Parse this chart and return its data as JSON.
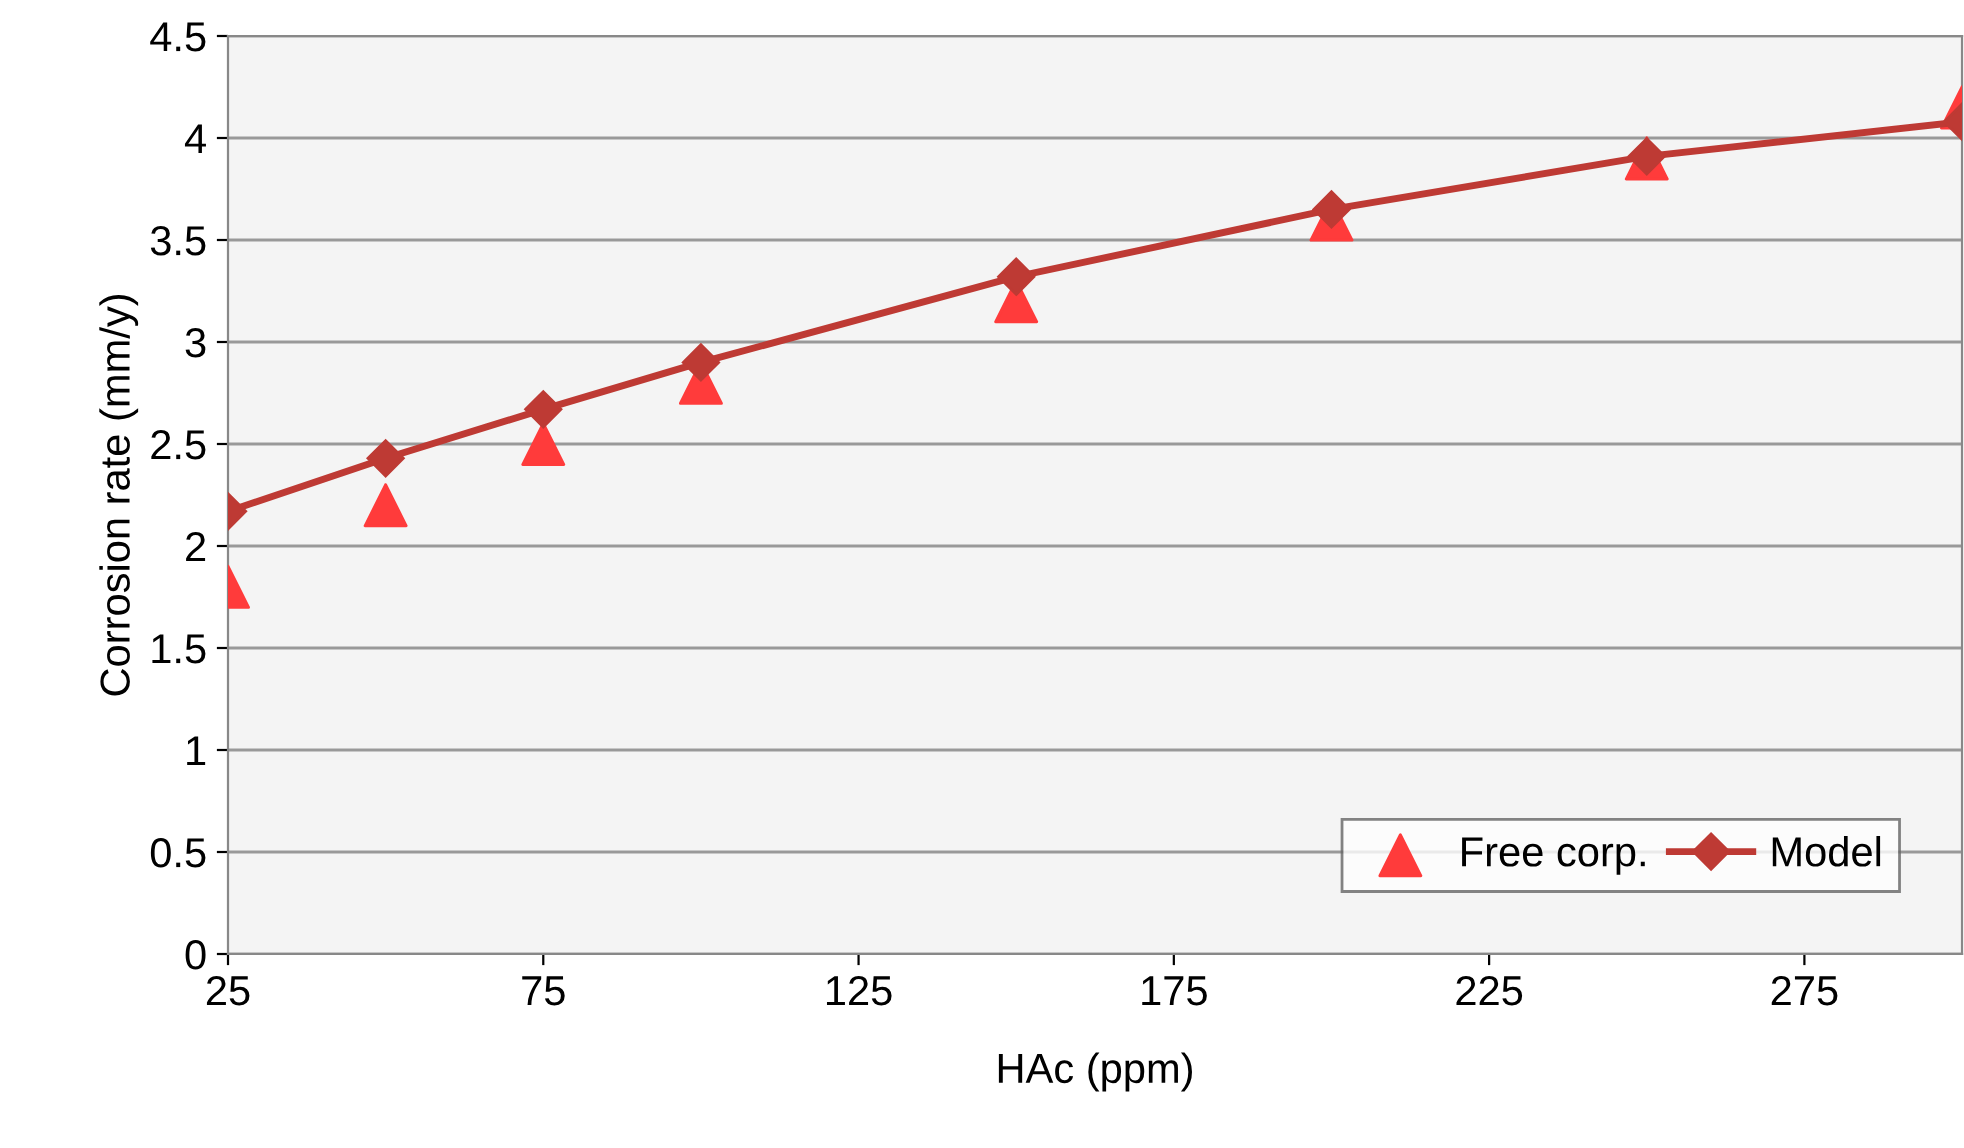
{
  "chart_data": {
    "type": "line",
    "xlabel": "HAc (ppm)",
    "ylabel": "Corrosion rate (mm/y)",
    "xlim": [
      25,
      300
    ],
    "xticks": [
      25,
      75,
      125,
      175,
      225,
      275
    ],
    "ylim": [
      0,
      4.5
    ],
    "yticks": [
      0,
      0.5,
      1,
      1.5,
      2,
      2.5,
      3,
      3.5,
      4,
      4.5
    ],
    "grid": "y",
    "legend": "bottom right",
    "series": [
      {
        "name": "Free corp.",
        "type": "scatter",
        "marker": "triangle",
        "color": "#ff3b3b",
        "x": [
          25,
          50,
          75,
          100,
          150,
          200,
          250,
          300
        ],
        "values": [
          1.8,
          2.2,
          2.5,
          2.8,
          3.2,
          3.6,
          3.9,
          4.15
        ]
      },
      {
        "name": "Model",
        "marker": "diamond",
        "line_style": "solid",
        "color": "#be3a34",
        "x": [
          25,
          50,
          75,
          100,
          150,
          200,
          250,
          300
        ],
        "values": [
          2.17,
          2.43,
          2.67,
          2.9,
          3.32,
          3.65,
          3.91,
          4.08
        ]
      }
    ]
  }
}
